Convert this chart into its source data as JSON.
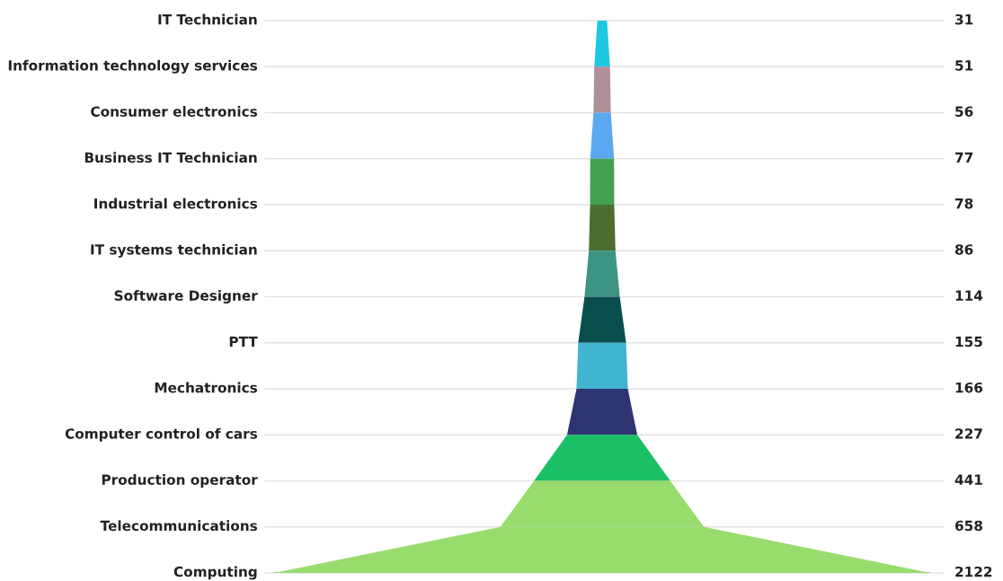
{
  "chart_data": {
    "type": "other",
    "categories": [
      "IT Technician",
      "Information technology services",
      "Consumer electronics",
      "Business IT Technician",
      "Industrial electronics",
      "IT systems technician",
      "Software Designer",
      "PTT",
      "Mechatronics",
      "Computer control of cars",
      "Production operator",
      "Telecommunications",
      "Computing"
    ],
    "values": [
      31,
      51,
      56,
      77,
      78,
      86,
      114,
      155,
      166,
      227,
      441,
      658,
      2122
    ],
    "colors": [
      "#1ec8e0",
      "#b09098",
      "#5aa8f0",
      "#43a050",
      "#4b6e30",
      "#3d9484",
      "#0a4d4d",
      "#40b4d0",
      "#2e3472",
      "#1bbf66",
      "#98dc6e",
      "#98dc6e",
      "#98dc6e"
    ],
    "data_labels": true
  }
}
